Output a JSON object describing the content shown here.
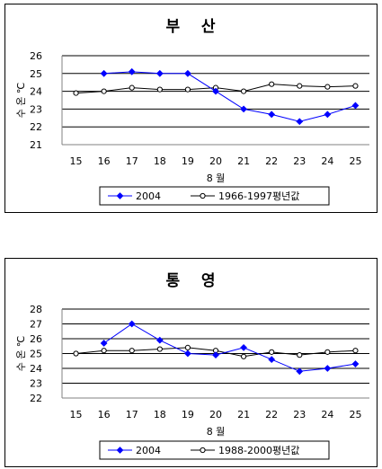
{
  "chart_data": [
    {
      "type": "line",
      "title": "부    산",
      "xlabel": "8 월",
      "ylabel": "수 온 ℃",
      "categories": [
        15,
        16,
        17,
        18,
        19,
        20,
        21,
        22,
        23,
        24,
        25
      ],
      "ylim": [
        21,
        26
      ],
      "yticks": [
        21,
        22,
        23,
        24,
        25,
        26
      ],
      "grid": true,
      "legend_position": "bottom",
      "series": [
        {
          "name": "2004",
          "color": "#0000ff",
          "marker": "filled-diamond",
          "values": [
            null,
            25.0,
            25.1,
            25.0,
            25.0,
            24.0,
            23.0,
            22.7,
            22.3,
            22.7,
            23.2
          ]
        },
        {
          "name": "1966-1997평년값",
          "color": "#000000",
          "marker": "open-circle",
          "values": [
            23.9,
            24.0,
            24.2,
            24.1,
            24.1,
            24.2,
            24.0,
            24.4,
            24.3,
            24.25,
            24.3
          ]
        }
      ]
    },
    {
      "type": "line",
      "title": "통    영",
      "xlabel": "8 월",
      "ylabel": "수 온 ℃",
      "categories": [
        15,
        16,
        17,
        18,
        19,
        20,
        21,
        22,
        23,
        24,
        25
      ],
      "ylim": [
        22,
        28
      ],
      "yticks": [
        22,
        23,
        24,
        25,
        26,
        27,
        28
      ],
      "grid": true,
      "legend_position": "bottom",
      "series": [
        {
          "name": "2004",
          "color": "#0000ff",
          "marker": "filled-diamond",
          "values": [
            null,
            25.7,
            27.0,
            25.9,
            25.0,
            24.9,
            25.4,
            24.6,
            23.8,
            24.0,
            24.3
          ]
        },
        {
          "name": "1988-2000평년값",
          "color": "#000000",
          "marker": "open-circle",
          "values": [
            25.0,
            25.2,
            25.2,
            25.3,
            25.4,
            25.2,
            24.8,
            25.1,
            24.9,
            25.1,
            25.2
          ]
        }
      ]
    }
  ]
}
